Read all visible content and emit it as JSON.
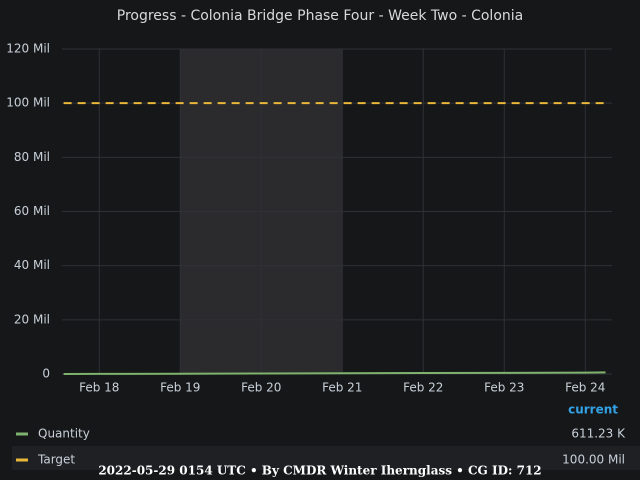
{
  "chart_data": {
    "type": "line",
    "title": "Progress - Colonia Bridge Phase Four - Week Two - Colonia",
    "x": [
      17.56,
      18,
      19,
      20,
      21,
      22,
      23,
      24,
      24.25
    ],
    "xlim": [
      17.54,
      24.33
    ],
    "xticks": [
      {
        "value": 18,
        "label": "Feb 18"
      },
      {
        "value": 19,
        "label": "Feb 19"
      },
      {
        "value": 20,
        "label": "Feb 20"
      },
      {
        "value": 21,
        "label": "Feb 21"
      },
      {
        "value": 22,
        "label": "Feb 22"
      },
      {
        "value": 23,
        "label": "Feb 23"
      },
      {
        "value": 24,
        "label": "Feb 24"
      }
    ],
    "ylim": [
      0,
      120000000
    ],
    "yticks": [
      {
        "value": 0,
        "label": "0"
      },
      {
        "value": 20000000,
        "label": "20 Mil"
      },
      {
        "value": 40000000,
        "label": "40 Mil"
      },
      {
        "value": 60000000,
        "label": "60 Mil"
      },
      {
        "value": 80000000,
        "label": "80 Mil"
      },
      {
        "value": 100000000,
        "label": "100 Mil"
      },
      {
        "value": 120000000,
        "label": "120 Mil"
      }
    ],
    "grid": true,
    "shaded_range": [
      19,
      21
    ],
    "legend_header": "current",
    "series": [
      {
        "name": "Quantity",
        "color": "#7eb26d",
        "legend_value": "611.23 K",
        "values": [
          0,
          40000,
          110000,
          170000,
          260000,
          350000,
          430000,
          520000,
          611230
        ]
      },
      {
        "name": "Target",
        "color": "#eab839",
        "dashed": true,
        "legend_value": "100.00 Mil",
        "values": [
          100000000,
          100000000,
          100000000,
          100000000,
          100000000,
          100000000,
          100000000,
          100000000,
          100000000
        ]
      }
    ],
    "footer": "2022-05-29 0154 UTC • By CMDR Winter Ihernglass • CG ID: 712"
  }
}
